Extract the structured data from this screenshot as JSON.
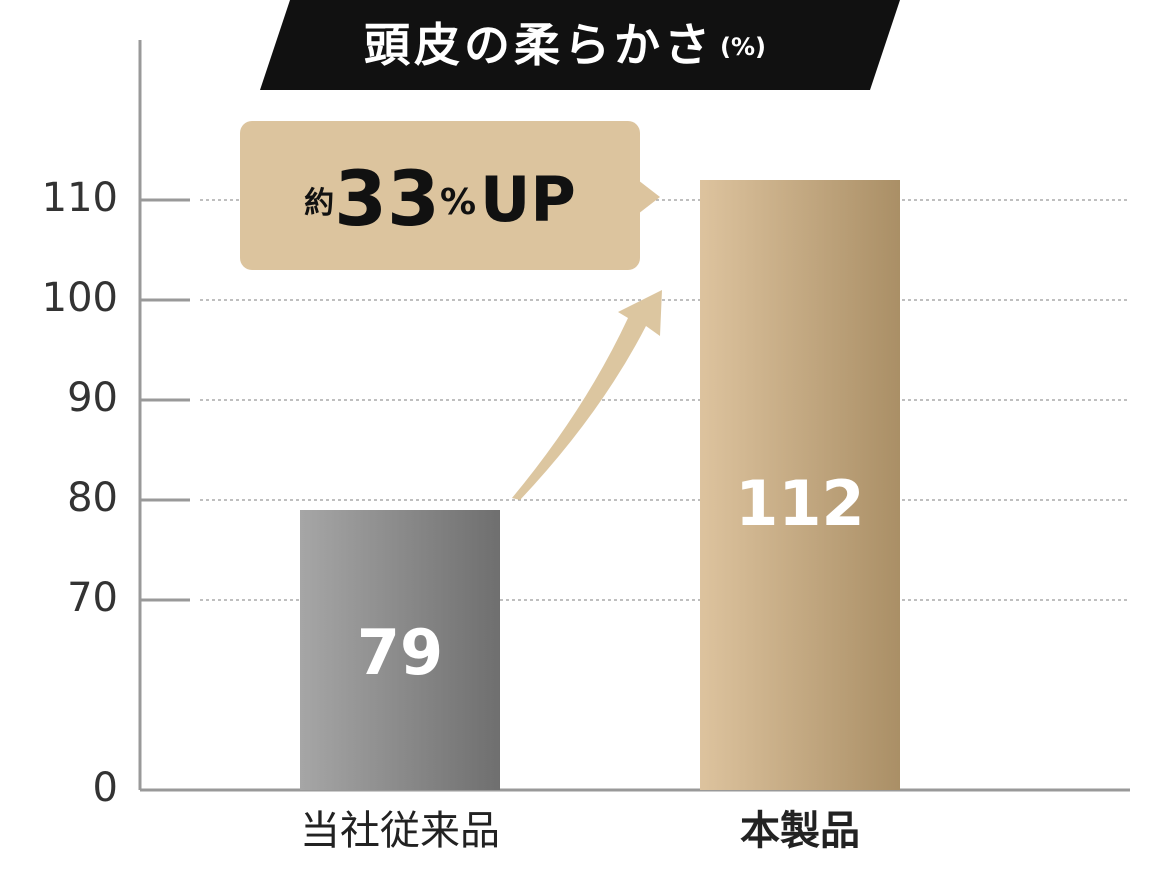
{
  "chart_data": {
    "type": "bar",
    "title": "頭皮の柔らかさ",
    "title_unit": "(%)",
    "categories": [
      "当社従来品",
      "本製品"
    ],
    "values": [
      79,
      112
    ],
    "colors": [
      [
        "#a6a6a6",
        "#6f6f6f"
      ],
      [
        "#ddc39e",
        "#aa8f66"
      ]
    ],
    "highlight": 1,
    "ylim": [
      0,
      126
    ],
    "axis_break": [
      0,
      70
    ],
    "yticks": [
      0,
      70,
      80,
      90,
      100,
      110
    ],
    "grid": true,
    "annotation": {
      "prefix": "約",
      "number": "33",
      "unit": "%",
      "suffix": "UP"
    }
  }
}
